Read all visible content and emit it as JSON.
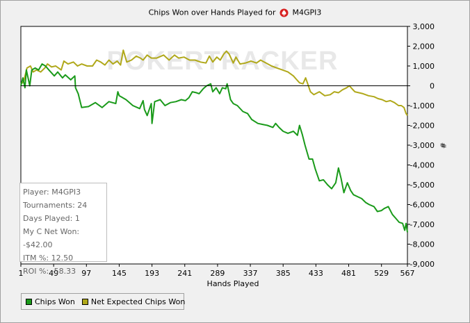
{
  "window": {
    "title_prefix": "Chips Won over Hands Played for",
    "player_name": "M4GPI3",
    "suit_icon": "spade-icon"
  },
  "watermark": {
    "text": "POKERTRACKER"
  },
  "stats": {
    "player": "Player: M4GPI3",
    "tournaments": "Tournaments: 24",
    "days_played": "Days Played: 1",
    "net_won": "My C Net Won: -$42.00",
    "itm": "ITM %: 12.50",
    "roi": "ROI %: -58.33"
  },
  "legend": {
    "items": [
      {
        "label": "Chips Won",
        "color": "#1a9a1a"
      },
      {
        "label": "Net Expected Chips Won",
        "color": "#b0a81a"
      }
    ]
  },
  "chart_data": {
    "type": "line",
    "title": "Chips Won over Hands Played for M4GPI3",
    "xlabel": "Hands Played",
    "ylabel": "#",
    "xlim": [
      1,
      567
    ],
    "ylim": [
      -9000,
      3000
    ],
    "x_ticks": [
      1,
      49,
      97,
      145,
      193,
      241,
      289,
      337,
      385,
      433,
      481,
      529,
      567
    ],
    "y_ticks": [
      3000,
      2000,
      1000,
      0,
      -1000,
      -2000,
      -3000,
      -4000,
      -5000,
      -6000,
      -7000,
      -8000,
      -9000
    ],
    "y_tick_labels": [
      "3,000",
      "2,000",
      "1,000",
      "0",
      "-1,000",
      "-2,000",
      "-3,000",
      "-4,000",
      "-5,000",
      "-6,000",
      "-7,000",
      "-8,000",
      "-9,000"
    ],
    "grid": false,
    "legend_position": "bottom-left",
    "series": [
      {
        "name": "Chips Won",
        "color": "#1a9a1a",
        "points": [
          [
            1,
            0
          ],
          [
            4,
            400
          ],
          [
            7,
            -100
          ],
          [
            9,
            800
          ],
          [
            14,
            0
          ],
          [
            17,
            800
          ],
          [
            22,
            900
          ],
          [
            27,
            800
          ],
          [
            32,
            1100
          ],
          [
            37,
            1000
          ],
          [
            42,
            800
          ],
          [
            50,
            500
          ],
          [
            55,
            700
          ],
          [
            62,
            400
          ],
          [
            66,
            550
          ],
          [
            74,
            300
          ],
          [
            80,
            500
          ],
          [
            81,
            -100
          ],
          [
            85,
            -400
          ],
          [
            90,
            -1100
          ],
          [
            100,
            -1050
          ],
          [
            110,
            -850
          ],
          [
            120,
            -1100
          ],
          [
            130,
            -800
          ],
          [
            140,
            -900
          ],
          [
            143,
            -300
          ],
          [
            145,
            -500
          ],
          [
            150,
            -600
          ],
          [
            155,
            -700
          ],
          [
            165,
            -1000
          ],
          [
            175,
            -1150
          ],
          [
            180,
            -750
          ],
          [
            182,
            -1200
          ],
          [
            186,
            -1500
          ],
          [
            192,
            -900
          ],
          [
            193,
            -1900
          ],
          [
            197,
            -800
          ],
          [
            205,
            -700
          ],
          [
            212,
            -1000
          ],
          [
            220,
            -850
          ],
          [
            228,
            -800
          ],
          [
            236,
            -700
          ],
          [
            242,
            -750
          ],
          [
            247,
            -600
          ],
          [
            252,
            -300
          ],
          [
            258,
            -350
          ],
          [
            262,
            -400
          ],
          [
            268,
            -150
          ],
          [
            273,
            0
          ],
          [
            279,
            100
          ],
          [
            282,
            -300
          ],
          [
            287,
            -100
          ],
          [
            292,
            -400
          ],
          [
            296,
            -100
          ],
          [
            301,
            -150
          ],
          [
            303,
            100
          ],
          [
            308,
            -700
          ],
          [
            312,
            -900
          ],
          [
            318,
            -1000
          ],
          [
            326,
            -1300
          ],
          [
            333,
            -1400
          ],
          [
            339,
            -1700
          ],
          [
            348,
            -1900
          ],
          [
            355,
            -1950
          ],
          [
            362,
            -2000
          ],
          [
            370,
            -2100
          ],
          [
            374,
            -1900
          ],
          [
            379,
            -2100
          ],
          [
            385,
            -2300
          ],
          [
            392,
            -2400
          ],
          [
            400,
            -2300
          ],
          [
            406,
            -2500
          ],
          [
            409,
            -2000
          ],
          [
            413,
            -2450
          ],
          [
            417,
            -3000
          ],
          [
            423,
            -3700
          ],
          [
            428,
            -3700
          ],
          [
            432,
            -4200
          ],
          [
            438,
            -4800
          ],
          [
            444,
            -4750
          ],
          [
            450,
            -5000
          ],
          [
            456,
            -5200
          ],
          [
            462,
            -4900
          ],
          [
            466,
            -4150
          ],
          [
            470,
            -4700
          ],
          [
            474,
            -5400
          ],
          [
            479,
            -4900
          ],
          [
            484,
            -5300
          ],
          [
            488,
            -5500
          ],
          [
            494,
            -5600
          ],
          [
            500,
            -5700
          ],
          [
            506,
            -5900
          ],
          [
            511,
            -6000
          ],
          [
            518,
            -6100
          ],
          [
            523,
            -6350
          ],
          [
            529,
            -6300
          ],
          [
            533,
            -6200
          ],
          [
            539,
            -6100
          ],
          [
            545,
            -6500
          ],
          [
            550,
            -6700
          ],
          [
            555,
            -6900
          ],
          [
            560,
            -6950
          ],
          [
            563,
            -7300
          ],
          [
            565,
            -6950
          ],
          [
            567,
            -7400
          ]
        ]
      },
      {
        "name": "Net Expected Chips Won",
        "color": "#b0a81a",
        "points": [
          [
            1,
            100
          ],
          [
            5,
            200
          ],
          [
            10,
            900
          ],
          [
            15,
            1000
          ],
          [
            19,
            700
          ],
          [
            24,
            800
          ],
          [
            30,
            700
          ],
          [
            36,
            900
          ],
          [
            40,
            1100
          ],
          [
            46,
            950
          ],
          [
            52,
            1000
          ],
          [
            60,
            800
          ],
          [
            64,
            1250
          ],
          [
            70,
            1100
          ],
          [
            78,
            1200
          ],
          [
            84,
            1000
          ],
          [
            90,
            1100
          ],
          [
            98,
            1000
          ],
          [
            106,
            1000
          ],
          [
            112,
            1300
          ],
          [
            118,
            1200
          ],
          [
            124,
            1050
          ],
          [
            130,
            1300
          ],
          [
            136,
            1100
          ],
          [
            142,
            1250
          ],
          [
            147,
            1050
          ],
          [
            151,
            1800
          ],
          [
            156,
            1200
          ],
          [
            163,
            1300
          ],
          [
            170,
            1500
          ],
          [
            176,
            1400
          ],
          [
            180,
            1300
          ],
          [
            186,
            1550
          ],
          [
            192,
            1400
          ],
          [
            200,
            1400
          ],
          [
            210,
            1550
          ],
          [
            218,
            1300
          ],
          [
            226,
            1550
          ],
          [
            232,
            1400
          ],
          [
            240,
            1450
          ],
          [
            248,
            1300
          ],
          [
            256,
            1300
          ],
          [
            264,
            1200
          ],
          [
            272,
            1150
          ],
          [
            277,
            1500
          ],
          [
            282,
            1200
          ],
          [
            288,
            1450
          ],
          [
            293,
            1300
          ],
          [
            298,
            1600
          ],
          [
            302,
            1750
          ],
          [
            306,
            1600
          ],
          [
            312,
            1150
          ],
          [
            316,
            1450
          ],
          [
            322,
            1100
          ],
          [
            330,
            1150
          ],
          [
            338,
            1250
          ],
          [
            346,
            1150
          ],
          [
            352,
            1300
          ],
          [
            360,
            1150
          ],
          [
            368,
            1000
          ],
          [
            376,
            900
          ],
          [
            384,
            800
          ],
          [
            392,
            700
          ],
          [
            400,
            500
          ],
          [
            405,
            300
          ],
          [
            409,
            150
          ],
          [
            414,
            100
          ],
          [
            418,
            400
          ],
          [
            421,
            100
          ],
          [
            425,
            -300
          ],
          [
            430,
            -450
          ],
          [
            438,
            -300
          ],
          [
            446,
            -500
          ],
          [
            454,
            -450
          ],
          [
            460,
            -300
          ],
          [
            466,
            -350
          ],
          [
            472,
            -200
          ],
          [
            478,
            -100
          ],
          [
            482,
            0
          ],
          [
            486,
            -150
          ],
          [
            490,
            -300
          ],
          [
            496,
            -350
          ],
          [
            502,
            -400
          ],
          [
            510,
            -500
          ],
          [
            518,
            -550
          ],
          [
            524,
            -650
          ],
          [
            530,
            -700
          ],
          [
            536,
            -800
          ],
          [
            542,
            -750
          ],
          [
            548,
            -850
          ],
          [
            554,
            -1000
          ],
          [
            558,
            -1000
          ],
          [
            562,
            -1100
          ],
          [
            565,
            -1400
          ],
          [
            567,
            -1500
          ]
        ]
      }
    ]
  },
  "axes": {
    "xlabel": "Hands Played",
    "ylabel": "#"
  }
}
